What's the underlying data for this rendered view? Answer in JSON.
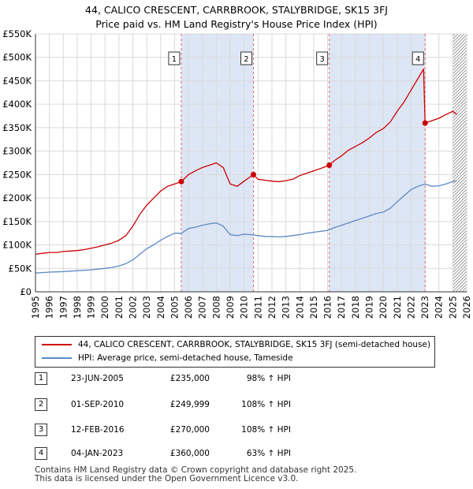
{
  "title": {
    "line1": "44, CALICO CRESCENT, CARRBROOK, STALYBRIDGE, SK15 3FJ",
    "line2": "Price paid vs. HM Land Registry's House Price Index (HPI)"
  },
  "legend": {
    "red_label": "44, CALICO CRESCENT, CARRBROOK, STALYBRIDGE, SK15 3FJ (semi-detached house)",
    "blue_label": "HPI: Average price, semi-detached house, Tameside"
  },
  "sales": [
    {
      "num": "1",
      "date": "23-JUN-2005",
      "price": "£235,000",
      "hpi": "98% ↑ HPI"
    },
    {
      "num": "2",
      "date": "01-SEP-2010",
      "price": "£249,999",
      "hpi": "108% ↑ HPI"
    },
    {
      "num": "3",
      "date": "12-FEB-2016",
      "price": "£270,000",
      "hpi": "108% ↑ HPI"
    },
    {
      "num": "4",
      "date": "04-JAN-2023",
      "price": "£360,000",
      "hpi": "63% ↑ HPI"
    }
  ],
  "footer": {
    "line1": "Contains HM Land Registry data © Crown copyright and database right 2025.",
    "line2": "This data is licensed under the Open Government Licence v3.0."
  },
  "colors": {
    "property_line": "#cc0000",
    "hpi_line": "#5b8ac5",
    "shade": "#dde6f5",
    "grid": "#d9d9d9",
    "sale_marker": "#cc0000",
    "vline": "#e06666"
  },
  "chart_data": {
    "type": "line",
    "xlim": [
      1995,
      2026
    ],
    "ylim": [
      0,
      550000
    ],
    "y_ticks": [
      0,
      50000,
      100000,
      150000,
      200000,
      250000,
      300000,
      350000,
      400000,
      450000,
      500000,
      550000
    ],
    "y_tick_labels": [
      "£0",
      "£50K",
      "£100K",
      "£150K",
      "£200K",
      "£250K",
      "£300K",
      "£350K",
      "£400K",
      "£450K",
      "£500K",
      "£550K"
    ],
    "x_ticks": [
      1995,
      1996,
      1997,
      1998,
      1999,
      2000,
      2001,
      2002,
      2003,
      2004,
      2005,
      2006,
      2007,
      2008,
      2009,
      2010,
      2011,
      2012,
      2013,
      2014,
      2015,
      2016,
      2017,
      2018,
      2019,
      2020,
      2021,
      2022,
      2023,
      2024,
      2025,
      2026
    ],
    "x_tick_labels": [
      "1995",
      "1996",
      "1997",
      "1998",
      "1999",
      "2000",
      "2001",
      "2002",
      "2003",
      "2004",
      "2005",
      "2006",
      "2007",
      "2008",
      "2009",
      "2010",
      "2011",
      "2012",
      "2013",
      "2014",
      "2015",
      "2016",
      "2017",
      "2018",
      "2019",
      "2020",
      "2021",
      "2022",
      "2023",
      "2024",
      "2025",
      "2026"
    ],
    "shaded_ranges": [
      [
        2005.48,
        2010.67
      ],
      [
        2016.12,
        2023.01
      ]
    ],
    "hatch_from": 2025.0,
    "series": [
      {
        "name": "44, CALICO CRESCENT, CARRBROOK, STALYBRIDGE, SK15 3FJ (semi-detached house)",
        "x": [
          1995.0,
          1995.5,
          1996.0,
          1996.5,
          1997.0,
          1997.5,
          1998.0,
          1998.5,
          1999.0,
          1999.5,
          2000.0,
          2000.5,
          2001.0,
          2001.5,
          2002.0,
          2002.5,
          2003.0,
          2003.5,
          2004.0,
          2004.5,
          2005.0,
          2005.48,
          2006.0,
          2006.5,
          2007.0,
          2007.5,
          2008.0,
          2008.5,
          2009.0,
          2009.5,
          2010.0,
          2010.67,
          2011.0,
          2011.5,
          2012.0,
          2012.5,
          2013.0,
          2013.5,
          2014.0,
          2014.5,
          2015.0,
          2015.5,
          2016.12,
          2016.5,
          2017.0,
          2017.5,
          2018.0,
          2018.5,
          2019.0,
          2019.5,
          2020.0,
          2020.5,
          2021.0,
          2021.5,
          2022.0,
          2022.5,
          2022.9,
          2023.01,
          2023.5,
          2024.0,
          2024.5,
          2025.0,
          2025.3
        ],
        "values": [
          80000,
          82000,
          84000,
          84000,
          86000,
          87000,
          88000,
          90000,
          93000,
          96000,
          100000,
          104000,
          110000,
          120000,
          140000,
          165000,
          185000,
          200000,
          215000,
          225000,
          230000,
          235000,
          250000,
          258000,
          265000,
          270000,
          275000,
          265000,
          230000,
          225000,
          236000,
          249999,
          240000,
          238000,
          236000,
          235000,
          237000,
          240000,
          248000,
          253000,
          258000,
          263000,
          270000,
          280000,
          290000,
          302000,
          310000,
          318000,
          328000,
          340000,
          348000,
          362000,
          385000,
          405000,
          430000,
          455000,
          475000,
          360000,
          365000,
          370000,
          378000,
          385000,
          378000
        ]
      },
      {
        "name": "HPI: Average price, semi-detached house, Tameside",
        "x": [
          1995.0,
          1995.5,
          1996.0,
          1996.5,
          1997.0,
          1997.5,
          1998.0,
          1998.5,
          1999.0,
          1999.5,
          2000.0,
          2000.5,
          2001.0,
          2001.5,
          2002.0,
          2002.5,
          2003.0,
          2003.5,
          2004.0,
          2004.5,
          2005.0,
          2005.5,
          2006.0,
          2006.5,
          2007.0,
          2007.5,
          2008.0,
          2008.5,
          2009.0,
          2009.5,
          2010.0,
          2010.5,
          2011.0,
          2011.5,
          2012.0,
          2012.5,
          2013.0,
          2013.5,
          2014.0,
          2014.5,
          2015.0,
          2015.5,
          2016.0,
          2016.5,
          2017.0,
          2017.5,
          2018.0,
          2018.5,
          2019.0,
          2019.5,
          2020.0,
          2020.5,
          2021.0,
          2021.5,
          2022.0,
          2022.5,
          2023.0,
          2023.5,
          2024.0,
          2024.5,
          2025.0,
          2025.3
        ],
        "values": [
          40000,
          41000,
          42000,
          42500,
          43000,
          44000,
          45000,
          46000,
          47000,
          48500,
          50000,
          52000,
          55000,
          60000,
          68000,
          80000,
          92000,
          100000,
          110000,
          118000,
          125000,
          125000,
          135000,
          138000,
          142000,
          145000,
          147000,
          140000,
          122000,
          120000,
          123000,
          122000,
          120000,
          118000,
          118000,
          117000,
          118000,
          120000,
          122000,
          125000,
          127000,
          129000,
          131000,
          137000,
          142000,
          147000,
          152000,
          157000,
          162000,
          167000,
          170000,
          178000,
          192000,
          205000,
          218000,
          225000,
          230000,
          225000,
          226000,
          230000,
          235000,
          237000
        ]
      }
    ],
    "sale_points": [
      {
        "label": "1",
        "x": 2005.48,
        "y": 235000
      },
      {
        "label": "2",
        "x": 2010.67,
        "y": 249999
      },
      {
        "label": "3",
        "x": 2016.12,
        "y": 270000
      },
      {
        "label": "4",
        "x": 2023.01,
        "y": 360000
      }
    ]
  }
}
